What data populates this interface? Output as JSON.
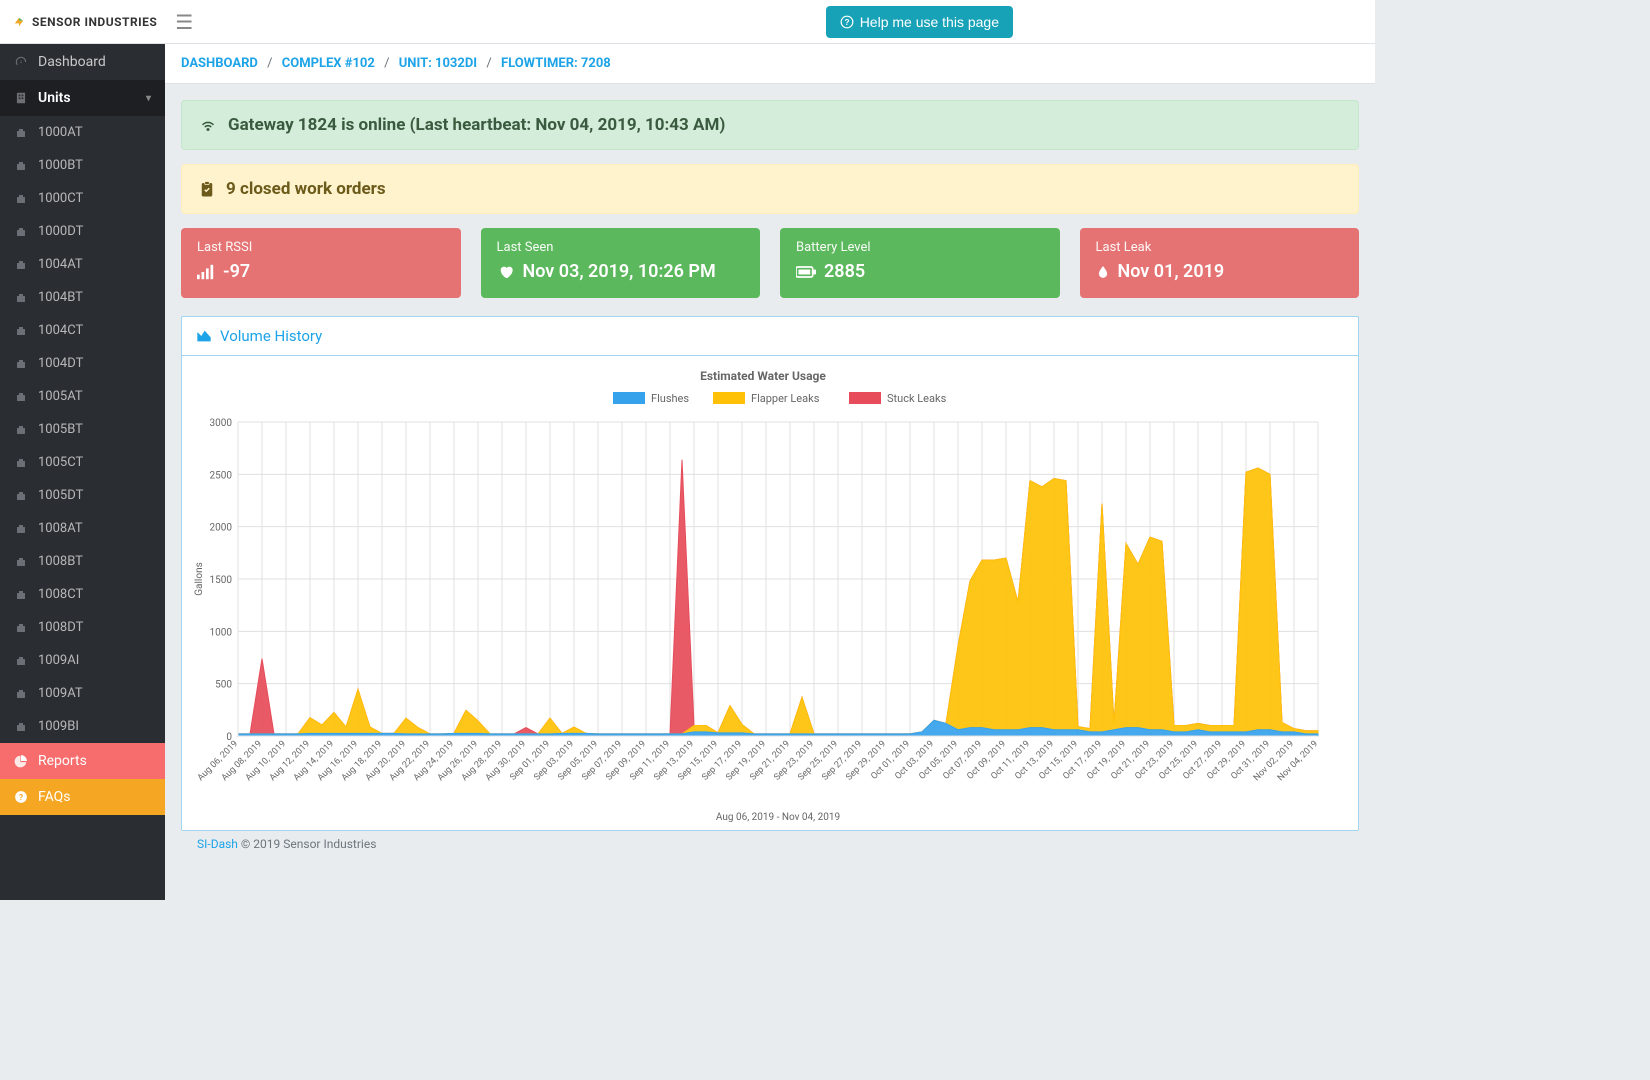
{
  "brand": "SENSOR INDUSTRIES",
  "help_button": "Help me use this page",
  "sidebar": {
    "dashboard": "Dashboard",
    "units_label": "Units",
    "units": [
      "1000AT",
      "1000BT",
      "1000CT",
      "1000DT",
      "1004AT",
      "1004BT",
      "1004CT",
      "1004DT",
      "1005AT",
      "1005BT",
      "1005CT",
      "1005DT",
      "1008AT",
      "1008BT",
      "1008CT",
      "1008DT",
      "1009AI",
      "1009AT",
      "1009BI"
    ],
    "reports": "Reports",
    "faqs": "FAQs"
  },
  "breadcrumbs": {
    "a": "DASHBOARD",
    "b": "COMPLEX #102",
    "c": "UNIT: 1032DI",
    "d": "FLOWTIMER: 7208"
  },
  "alerts": {
    "gateway": "Gateway 1824 is online (Last heartbeat: Nov 04, 2019, 10:43 AM)",
    "workorders": "9 closed work orders"
  },
  "stats": {
    "rssi_label": "Last RSSI",
    "rssi_value": "-97",
    "seen_label": "Last Seen",
    "seen_value": "Nov 03, 2019, 10:26 PM",
    "batt_label": "Battery Level",
    "batt_value": "2885",
    "leak_label": "Last Leak",
    "leak_value": "Nov 01, 2019"
  },
  "chart": {
    "panel_title": "Volume History",
    "title": "Estimated Water Usage",
    "legend": {
      "flushes": "Flushes",
      "flapper": "Flapper Leaks",
      "stuck": "Stuck Leaks"
    },
    "ylabel": "Gallons",
    "xlabel": "Aug 06, 2019 - Nov 04, 2019",
    "ylim": [
      0,
      3000
    ],
    "ytick_step": 500,
    "colors": {
      "flushes": "#36a2eb",
      "flapper": "#ffc107",
      "stuck": "#e74c5a",
      "grid": "#e0e0e0",
      "axis": "#666666",
      "text": "#666666",
      "background": "#ffffff"
    },
    "x_labels_step": 2,
    "dates": [
      "Aug 06, 2019",
      "Aug 07, 2019",
      "Aug 08, 2019",
      "Aug 09, 2019",
      "Aug 10, 2019",
      "Aug 11, 2019",
      "Aug 12, 2019",
      "Aug 13, 2019",
      "Aug 14, 2019",
      "Aug 15, 2019",
      "Aug 16, 2019",
      "Aug 17, 2019",
      "Aug 18, 2019",
      "Aug 19, 2019",
      "Aug 20, 2019",
      "Aug 21, 2019",
      "Aug 22, 2019",
      "Aug 23, 2019",
      "Aug 24, 2019",
      "Aug 25, 2019",
      "Aug 26, 2019",
      "Aug 27, 2019",
      "Aug 28, 2019",
      "Aug 29, 2019",
      "Aug 30, 2019",
      "Aug 31, 2019",
      "Sep 01, 2019",
      "Sep 02, 2019",
      "Sep 03, 2019",
      "Sep 04, 2019",
      "Sep 05, 2019",
      "Sep 06, 2019",
      "Sep 07, 2019",
      "Sep 08, 2019",
      "Sep 09, 2019",
      "Sep 10, 2019",
      "Sep 11, 2019",
      "Sep 12, 2019",
      "Sep 13, 2019",
      "Sep 14, 2019",
      "Sep 15, 2019",
      "Sep 16, 2019",
      "Sep 17, 2019",
      "Sep 18, 2019",
      "Sep 19, 2019",
      "Sep 20, 2019",
      "Sep 21, 2019",
      "Sep 22, 2019",
      "Sep 23, 2019",
      "Sep 24, 2019",
      "Sep 25, 2019",
      "Sep 26, 2019",
      "Sep 27, 2019",
      "Sep 28, 2019",
      "Sep 29, 2019",
      "Sep 30, 2019",
      "Oct 01, 2019",
      "Oct 02, 2019",
      "Oct 03, 2019",
      "Oct 04, 2019",
      "Oct 05, 2019",
      "Oct 06, 2019",
      "Oct 07, 2019",
      "Oct 08, 2019",
      "Oct 09, 2019",
      "Oct 10, 2019",
      "Oct 11, 2019",
      "Oct 12, 2019",
      "Oct 13, 2019",
      "Oct 14, 2019",
      "Oct 15, 2019",
      "Oct 16, 2019",
      "Oct 17, 2019",
      "Oct 18, 2019",
      "Oct 19, 2019",
      "Oct 20, 2019",
      "Oct 21, 2019",
      "Oct 22, 2019",
      "Oct 23, 2019",
      "Oct 24, 2019",
      "Oct 25, 2019",
      "Oct 26, 2019",
      "Oct 27, 2019",
      "Oct 28, 2019",
      "Oct 29, 2019",
      "Oct 30, 2019",
      "Oct 31, 2019",
      "Nov 01, 2019",
      "Nov 02, 2019",
      "Nov 03, 2019",
      "Nov 04, 2019"
    ],
    "series": {
      "flushes": [
        20,
        20,
        20,
        20,
        20,
        20,
        25,
        25,
        25,
        25,
        25,
        25,
        25,
        25,
        20,
        20,
        20,
        20,
        25,
        25,
        25,
        20,
        20,
        20,
        20,
        20,
        20,
        25,
        25,
        25,
        20,
        20,
        20,
        20,
        20,
        20,
        20,
        20,
        40,
        40,
        30,
        30,
        30,
        20,
        20,
        20,
        20,
        20,
        20,
        20,
        20,
        20,
        20,
        20,
        20,
        20,
        20,
        40,
        150,
        120,
        60,
        80,
        80,
        60,
        60,
        60,
        80,
        80,
        60,
        60,
        60,
        40,
        40,
        60,
        80,
        80,
        60,
        60,
        40,
        40,
        60,
        40,
        40,
        40,
        40,
        60,
        60,
        40,
        40,
        20,
        20
      ],
      "flapper": [
        0,
        0,
        0,
        0,
        0,
        0,
        150,
        80,
        200,
        60,
        420,
        60,
        0,
        0,
        150,
        60,
        0,
        0,
        0,
        220,
        120,
        0,
        0,
        0,
        0,
        0,
        150,
        0,
        60,
        0,
        0,
        0,
        0,
        0,
        0,
        0,
        0,
        0,
        60,
        60,
        0,
        260,
        80,
        0,
        0,
        0,
        0,
        350,
        0,
        0,
        0,
        0,
        0,
        0,
        0,
        0,
        0,
        0,
        0,
        0,
        800,
        1400,
        1600,
        1620,
        1640,
        1220,
        2360,
        2300,
        2400,
        2380,
        30,
        30,
        2180,
        60,
        1760,
        1560,
        1840,
        1800,
        60,
        60,
        60,
        60,
        60,
        60,
        2480,
        2500,
        2440,
        90,
        30,
        30,
        30
      ],
      "stuck": [
        0,
        0,
        720,
        0,
        0,
        0,
        0,
        0,
        0,
        0,
        0,
        0,
        0,
        0,
        0,
        0,
        0,
        0,
        0,
        0,
        0,
        0,
        0,
        0,
        60,
        0,
        0,
        0,
        0,
        0,
        0,
        0,
        0,
        0,
        0,
        0,
        0,
        2620,
        0,
        0,
        0,
        0,
        0,
        0,
        0,
        0,
        0,
        0,
        0,
        0,
        0,
        0,
        0,
        0,
        0,
        0,
        0,
        0,
        0,
        0,
        0,
        0,
        0,
        0,
        0,
        0,
        0,
        0,
        0,
        0,
        0,
        0,
        0,
        0,
        0,
        0,
        0,
        0,
        0,
        0,
        0,
        0,
        0,
        0,
        0,
        0,
        0,
        0,
        0,
        0,
        0
      ]
    }
  },
  "footer": {
    "link": "SI-Dash",
    "text": " © 2019 Sensor Industries"
  }
}
